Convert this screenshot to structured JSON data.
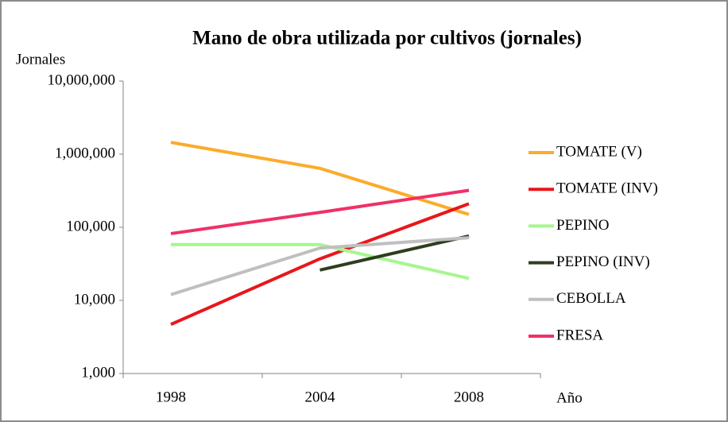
{
  "chart_data": {
    "type": "line",
    "title": "Mano de obra utilizada  por cultivos (jornales)",
    "y_label": "Jornales",
    "x_label": "Año",
    "categories": [
      "1998",
      "2004",
      "2008"
    ],
    "series": [
      {
        "name": "TOMATE (V)",
        "color": "#fbac2b",
        "values": [
          1450000,
          640000,
          150000
        ]
      },
      {
        "name": "TOMATE (INV)",
        "color": "#e8161b",
        "values": [
          4700,
          37000,
          210000
        ]
      },
      {
        "name": "PEPINO",
        "color": "#a6f68e",
        "values": [
          58000,
          58000,
          20000
        ]
      },
      {
        "name": "PEPINO (INV)",
        "color": "#2f3d1f",
        "values": [
          null,
          26000,
          76000
        ]
      },
      {
        "name": "CEBOLLA",
        "color": "#bfbfbf",
        "values": [
          12000,
          52000,
          72000
        ]
      },
      {
        "name": "FRESA",
        "color": "#f03067",
        "values": [
          82000,
          160000,
          320000
        ]
      }
    ],
    "log_scale": true,
    "ylim": [
      1000,
      10000000
    ],
    "yticks": [
      {
        "value": 1000,
        "label": "1,000"
      },
      {
        "value": 10000,
        "label": "10,000"
      },
      {
        "value": 100000,
        "label": "100,000"
      },
      {
        "value": 1000000,
        "label": "1,000,000"
      },
      {
        "value": 10000000,
        "label": "10,000,000"
      }
    ],
    "legend": "right"
  }
}
